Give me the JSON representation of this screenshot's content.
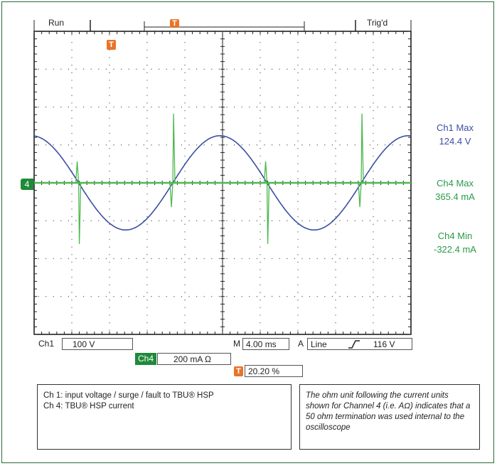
{
  "header": {
    "run_label": "Run",
    "trig_label": "Trig'd",
    "trigger_marker": "T"
  },
  "chart_data": {
    "type": "line",
    "x": {
      "unit": "ms",
      "per_div": 4.0,
      "divisions": 10,
      "range": [
        0,
        40
      ]
    },
    "series": [
      {
        "name": "Ch1",
        "color": "#3a4fa3",
        "unit": "V",
        "volts_per_div": 100,
        "frequency_hz": 50,
        "amplitude": 124.4,
        "phase_start_deg": 95
      },
      {
        "name": "Ch4",
        "color": "#4fb84f",
        "unit": "mA",
        "amps_per_div": 200,
        "max": 365.4,
        "min": -322.4,
        "spikes_at_zero_crossings": true
      }
    ],
    "grid": true,
    "ch4_ground_marker": "4"
  },
  "measurements": {
    "ch1_max_label": "Ch1 Max",
    "ch1_max_value": "124.4 V",
    "ch4_max_label": "Ch4 Max",
    "ch4_max_value": "365.4 mA",
    "ch4_min_label": "Ch4 Min",
    "ch4_min_value": "-322.4 mA"
  },
  "settings": {
    "ch1_label": "Ch1",
    "ch1_scale": "100 V",
    "ch4_label": "Ch4",
    "ch4_scale": "200 mA Ω",
    "time_label": "M",
    "time_scale": "4.00 ms",
    "trigger_source_label": "A",
    "trigger_source": "Line",
    "trigger_level": "116 V",
    "trigger_position_badge": "T",
    "trigger_position": "20.20 %"
  },
  "notes": {
    "legend_line1": "Ch 1:  input voltage / surge / fault to TBU® HSP",
    "legend_line2": "Ch 4:  TBU® HSP current",
    "ohm_note": "The ohm unit following the current units shown for Channel 4 (i.e. AΩ) indicates that a 50 ohm termination was used internal to the oscilloscope"
  }
}
